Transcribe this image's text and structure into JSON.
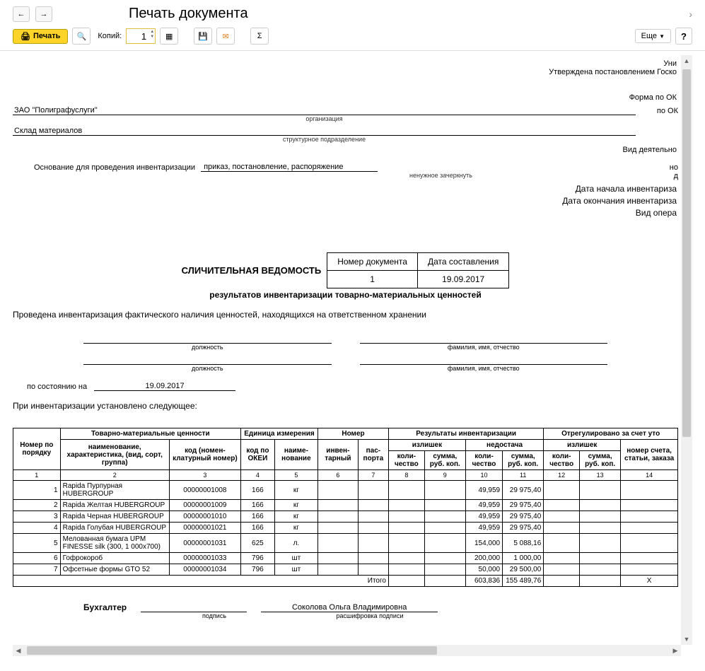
{
  "title": "Печать документа",
  "toolbar": {
    "print": "Печать",
    "copies_label": "Копий:",
    "copies_value": "1",
    "more": "Еще",
    "help": "?"
  },
  "header": {
    "approved_top": "Уни",
    "approved": "Утверждена постановлением Госко",
    "form_okud": "Форма по ОК",
    "by_okpo": "по ОК",
    "org": "ЗАО \"Полиграфуслуги\"",
    "org_label": "организация",
    "dept": "Склад материалов",
    "dept_label": "структурное подразделение",
    "activity": "Вид деятельно",
    "activity_row2": "но",
    "activity_row3": "д",
    "basis_label": "Основание для проведения инвентаризации",
    "basis_value": "приказ, постановление, распоряжение",
    "basis_sub": "ненужное зачеркнуть",
    "date_start": "Дата начала инвентариза",
    "date_end": "Дата окончания инвентариза",
    "oper": "Вид опера"
  },
  "docbox": {
    "title": "СЛИЧИТЕЛЬНАЯ ВЕДОМОСТЬ",
    "sub": "результатов инвентаризации товарно-материальных ценностей",
    "h1": "Номер документа",
    "h2": "Дата составления",
    "v1": "1",
    "v2": "19.09.2017"
  },
  "body": {
    "conducted": "Проведена инвентаризация фактического наличия ценностей, находящихся на ответственном хранении",
    "pos_label": "должность",
    "fio_label": "фамилия, имя, отчество",
    "status_label": "по состоянию на",
    "status_date": "19.09.2017",
    "established": "При инвентаризации установлено следующее:"
  },
  "table": {
    "headers": {
      "num": "Номер по порядку",
      "tmc": "Товарно-материальные ценности",
      "unit": "Единица измерения",
      "number": "Номер",
      "results": "Результаты инвентаризации",
      "regulated": "Отрегулировано за счет уто",
      "name": "наименование, характеристика, (вид, сорт, группа)",
      "code": "код (номен-клатурный номер)",
      "okei": "код по ОКЕИ",
      "uname": "наиме-нование",
      "inv": "инвен-тарный",
      "pass": "пас-порта",
      "surplus": "излишек",
      "shortage": "недостача",
      "qty": "коли-чество",
      "sum": "сумма, руб. коп.",
      "acct": "номер счета, статьи, заказа"
    },
    "rows": [
      {
        "n": "1",
        "name": "Rapida Пурпурная HUBERGROUP",
        "code": "00000001008",
        "okei": "166",
        "unit": "кг",
        "q": "49,959",
        "s": "29 975,40"
      },
      {
        "n": "2",
        "name": "Rapida Желтая HUBERGROUP",
        "code": "00000001009",
        "okei": "166",
        "unit": "кг",
        "q": "49,959",
        "s": "29 975,40"
      },
      {
        "n": "3",
        "name": "Rapida Черная HUBERGROUP",
        "code": "00000001010",
        "okei": "166",
        "unit": "кг",
        "q": "49,959",
        "s": "29 975,40"
      },
      {
        "n": "4",
        "name": "Rapida Голубая HUBERGROUP",
        "code": "00000001021",
        "okei": "166",
        "unit": "кг",
        "q": "49,959",
        "s": "29 975,40"
      },
      {
        "n": "5",
        "name": "Мелованная бумага UPM FINESSE silk (300, 1 000x700)",
        "code": "00000001031",
        "okei": "625",
        "unit": "л.",
        "q": "154,000",
        "s": "5 088,16"
      },
      {
        "n": "6",
        "name": "Гофрокороб",
        "code": "00000001033",
        "okei": "796",
        "unit": "шт",
        "q": "200,000",
        "s": "1 000,00"
      },
      {
        "n": "7",
        "name": "Офсетные формы GTO 52",
        "code": "00000001034",
        "okei": "796",
        "unit": "шт",
        "q": "50,000",
        "s": "29 500,00"
      }
    ],
    "total_label": "Итого",
    "total_q": "603,836",
    "total_s": "155 489,76",
    "total_x": "X"
  },
  "signer": {
    "role": "Бухгалтер",
    "name": "Соколова Ольга Владимировна",
    "sub1": "подпись",
    "sub2": "расшифровка подписи"
  }
}
